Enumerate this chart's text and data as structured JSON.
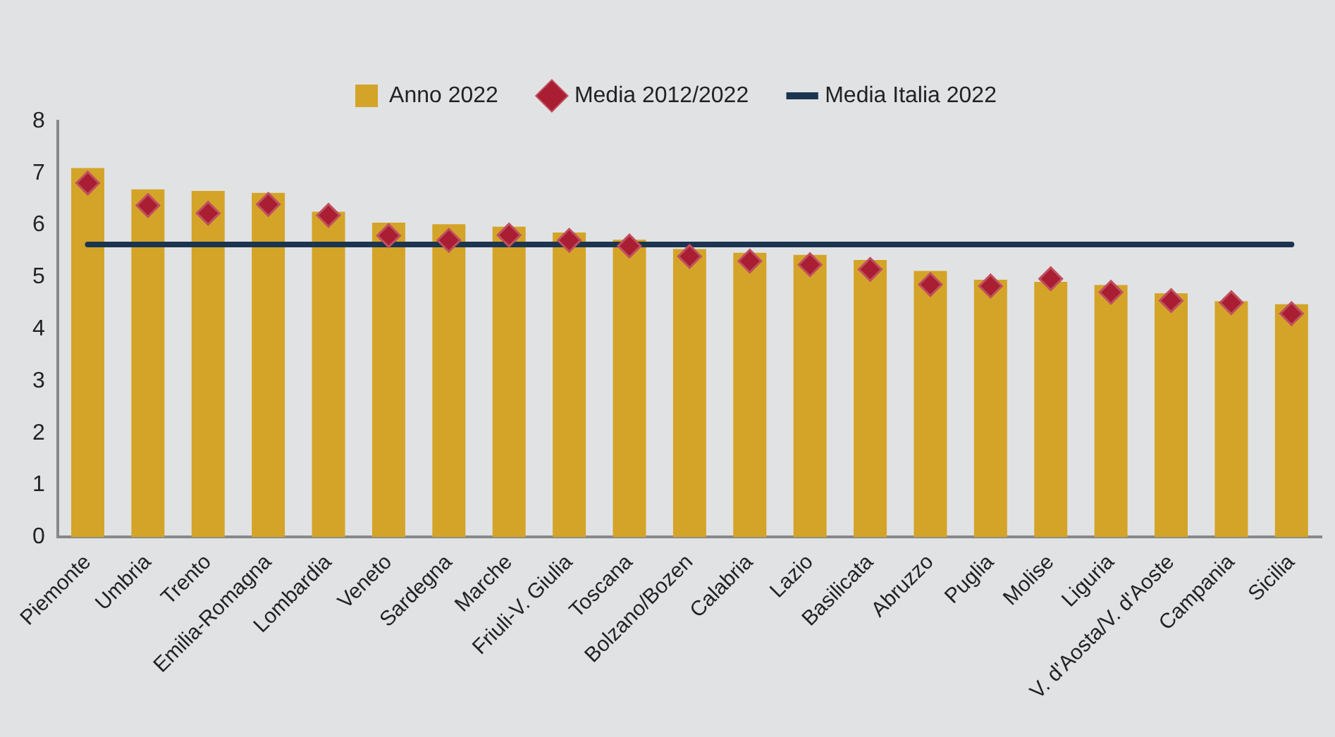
{
  "chart_data": {
    "type": "bar",
    "categories": [
      "Piemonte",
      "Umbria",
      "Trento",
      "Emilia-Romagna",
      "Lombardia",
      "Veneto",
      "Sardegna",
      "Marche",
      "Friuli-V. Giulia",
      "Toscana",
      "Bolzano/Bozen",
      "Calabria",
      "Lazio",
      "Basilicata",
      "Abruzzo",
      "Puglia",
      "Molise",
      "Liguria",
      "V. d'Aosta/V. d'Aoste",
      "Campania",
      "Sicilia"
    ],
    "series": [
      {
        "name": "Anno 2022",
        "color": "#d4a428",
        "values": [
          7.1,
          6.69,
          6.66,
          6.62,
          6.26,
          6.05,
          6.02,
          5.97,
          5.86,
          5.72,
          5.54,
          5.47,
          5.43,
          5.33,
          5.12,
          4.95,
          4.91,
          4.85,
          4.69,
          4.54,
          4.48
        ]
      },
      {
        "name": "Media 2012/2022",
        "type": "scatter",
        "marker": "diamond",
        "color": "#a91e32",
        "values": [
          6.81,
          6.38,
          6.23,
          6.4,
          6.19,
          5.8,
          5.71,
          5.81,
          5.71,
          5.6,
          5.4,
          5.31,
          5.24,
          5.15,
          4.86,
          4.83,
          4.97,
          4.71,
          4.55,
          4.51,
          4.3
        ]
      },
      {
        "name": "Media Italia 2022",
        "type": "line",
        "marker": "none",
        "color": "#1b3550",
        "values": [
          5.63,
          5.63,
          5.63,
          5.63,
          5.63,
          5.63,
          5.63,
          5.63,
          5.63,
          5.63,
          5.63,
          5.63,
          5.63,
          5.63,
          5.63,
          5.63,
          5.63,
          5.63,
          5.63,
          5.63,
          5.63
        ]
      }
    ],
    "ylim": [
      0,
      8
    ],
    "yticks": [
      0,
      1,
      2,
      3,
      4,
      5,
      6,
      7,
      8
    ],
    "grid": false,
    "legend": "top"
  }
}
